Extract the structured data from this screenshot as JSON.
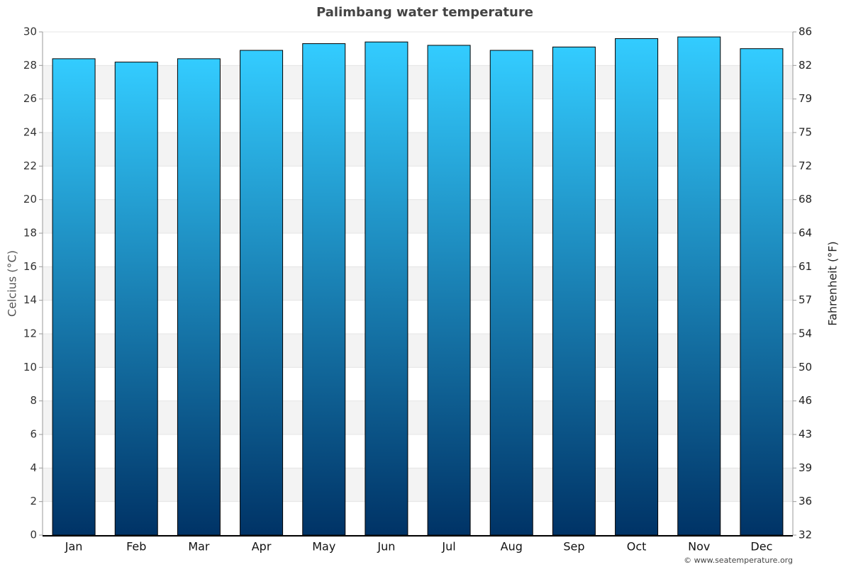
{
  "chart_data": {
    "type": "bar",
    "title": "Palimbang water temperature",
    "categories": [
      "Jan",
      "Feb",
      "Mar",
      "Apr",
      "May",
      "Jun",
      "Jul",
      "Aug",
      "Sep",
      "Oct",
      "Nov",
      "Dec"
    ],
    "values": [
      28.4,
      28.2,
      28.4,
      28.9,
      29.3,
      29.4,
      29.2,
      28.9,
      29.1,
      29.6,
      29.7,
      29.0
    ],
    "color_top": "#33ccff",
    "color_bottom": "#003366",
    "ylabel": "Celcius (°C)",
    "y2label": "Fahrenheit (°F)",
    "ylim": [
      0,
      30
    ],
    "yticks": [
      0,
      2,
      4,
      6,
      8,
      10,
      12,
      14,
      16,
      18,
      20,
      22,
      24,
      26,
      28,
      30
    ],
    "y2lim": [
      32,
      86
    ],
    "y2ticks": [
      32,
      {
        "value": 35.6,
        "label": "36"
      },
      {
        "value": 39.2,
        "label": "39"
      },
      {
        "value": 42.8,
        "label": "43"
      },
      {
        "value": 46.4,
        "label": "46"
      },
      50,
      {
        "value": 53.6,
        "label": "54"
      },
      {
        "value": 57.2,
        "label": "57"
      },
      {
        "value": 60.8,
        "label": "61"
      },
      {
        "value": 64.4,
        "label": "64"
      },
      68,
      {
        "value": 71.6,
        "label": "72"
      },
      {
        "value": 75.2,
        "label": "75"
      },
      {
        "value": 78.8,
        "label": "79"
      },
      {
        "value": 82.4,
        "label": "82"
      },
      86
    ],
    "grid": true,
    "source": "© www.seatemperature.org"
  }
}
